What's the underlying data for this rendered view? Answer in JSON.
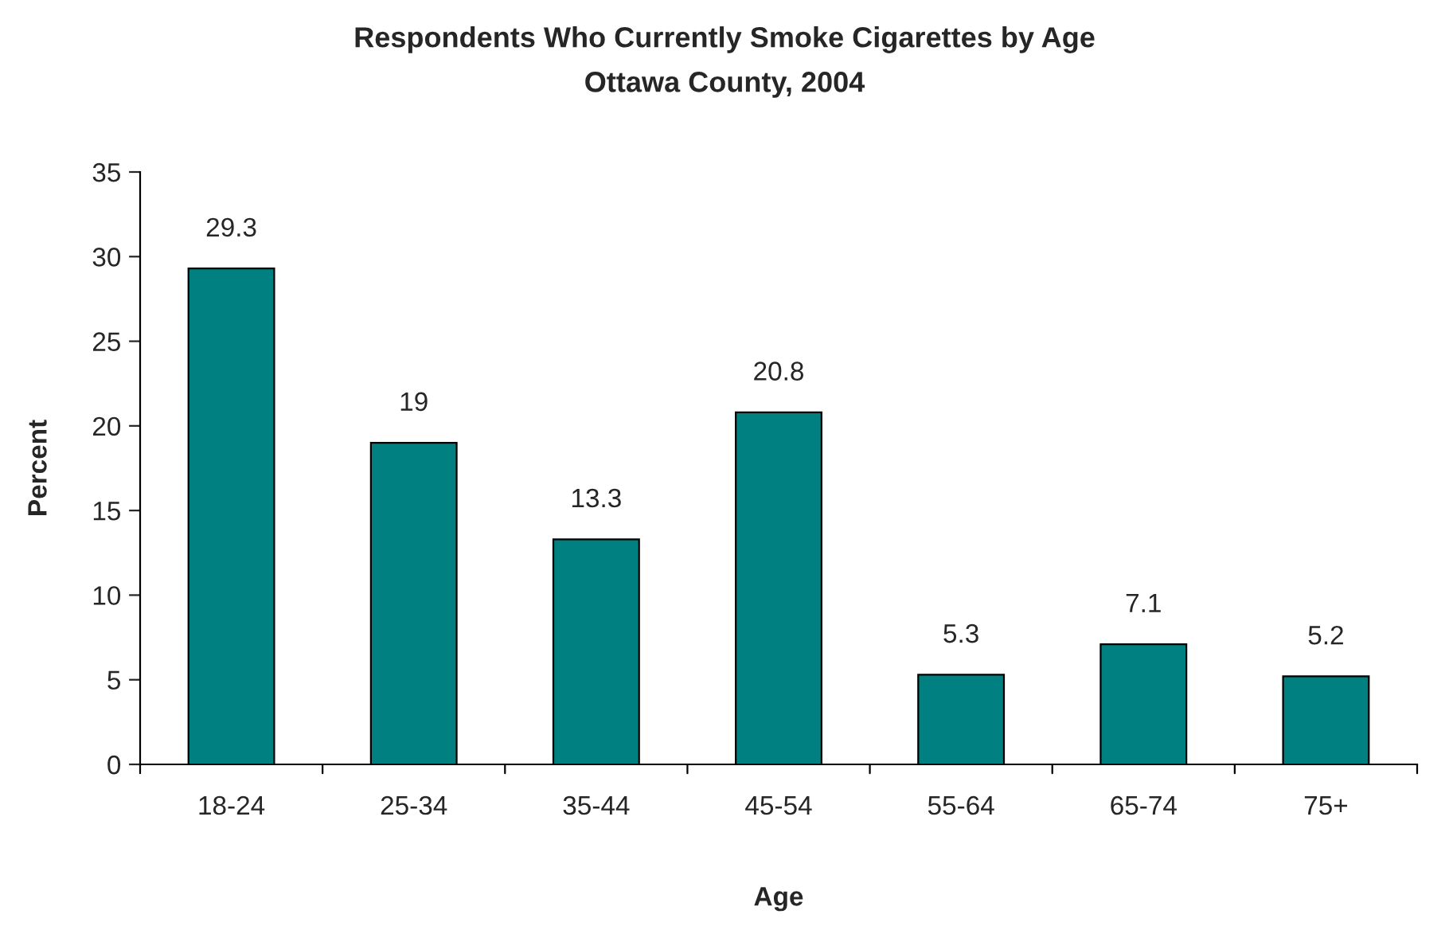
{
  "chart_data": {
    "type": "bar",
    "title": "Respondents Who Currently Smoke Cigarettes by Age",
    "subtitle": "Ottawa County, 2004",
    "xlabel": "Age",
    "ylabel": "Percent",
    "categories": [
      "18-24",
      "25-34",
      "35-44",
      "45-54",
      "55-64",
      "65-74",
      "75+"
    ],
    "values": [
      29.3,
      19,
      13.3,
      20.8,
      5.3,
      7.1,
      5.2
    ],
    "color": "#008080",
    "ylim": [
      0,
      35
    ],
    "yticks": [
      0,
      5,
      10,
      15,
      20,
      25,
      30,
      35
    ],
    "grid": false,
    "data_labels": true
  }
}
